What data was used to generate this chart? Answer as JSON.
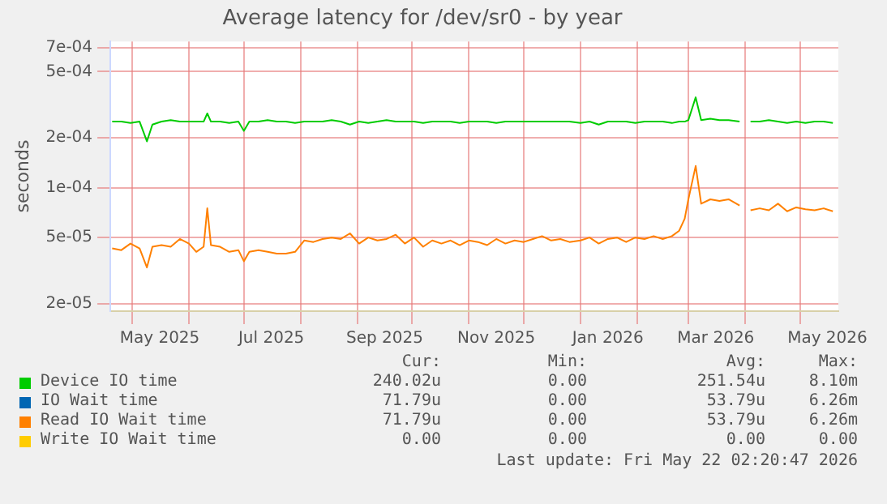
{
  "chart_data": {
    "type": "line",
    "title": "Average latency for /dev/sr0 - by year",
    "ylabel": "seconds",
    "log": "y",
    "grid": true,
    "legend": "bottom",
    "marker": "none",
    "line_style": "solid",
    "xlim": [
      "2025-04-19",
      "2026-05-22"
    ],
    "xticks": [
      {
        "value": "2025-05-01",
        "label": null
      },
      {
        "value": "2025-05-16",
        "label": "May 2025"
      },
      {
        "value": "2025-06-01",
        "label": null
      },
      {
        "value": "2025-07-01",
        "label": null
      },
      {
        "value": "2025-07-16",
        "label": "Jul 2025"
      },
      {
        "value": "2025-08-01",
        "label": null
      },
      {
        "value": "2025-09-01",
        "label": null
      },
      {
        "value": "2025-09-16",
        "label": "Sep 2025"
      },
      {
        "value": "2025-10-01",
        "label": null
      },
      {
        "value": "2025-11-01",
        "label": null
      },
      {
        "value": "2025-11-16",
        "label": "Nov 2025"
      },
      {
        "value": "2025-12-01",
        "label": null
      },
      {
        "value": "2026-01-01",
        "label": null
      },
      {
        "value": "2026-01-16",
        "label": "Jan 2026"
      },
      {
        "value": "2026-02-01",
        "label": null
      },
      {
        "value": "2026-03-01",
        "label": null
      },
      {
        "value": "2026-03-16",
        "label": "Mar 2026"
      },
      {
        "value": "2026-04-01",
        "label": null
      },
      {
        "value": "2026-05-01",
        "label": null
      },
      {
        "value": "2026-05-16",
        "label": "May 2026"
      }
    ],
    "ylim": [
      1.8e-05,
      0.00076
    ],
    "yticks": [
      {
        "value": 2e-05,
        "label": "2e-05"
      },
      {
        "value": 5e-05,
        "label": "5e-05"
      },
      {
        "value": 0.0001,
        "label": "1e-04"
      },
      {
        "value": 0.0002,
        "label": "2e-04"
      },
      {
        "value": 0.0005,
        "label": "5e-04"
      },
      {
        "value": 0.0007,
        "label": "7e-04"
      }
    ],
    "x": [
      "2025-04-20",
      "2025-04-25",
      "2025-04-30",
      "2025-05-05",
      "2025-05-09",
      "2025-05-12",
      "2025-05-17",
      "2025-05-22",
      "2025-05-27",
      "2025-06-01",
      "2025-06-05",
      "2025-06-09",
      "2025-06-11",
      "2025-06-13",
      "2025-06-18",
      "2025-06-23",
      "2025-06-28",
      "2025-07-01",
      "2025-07-04",
      "2025-07-09",
      "2025-07-14",
      "2025-07-19",
      "2025-07-24",
      "2025-07-29",
      "2025-08-03",
      "2025-08-08",
      "2025-08-13",
      "2025-08-18",
      "2025-08-23",
      "2025-08-28",
      "2025-09-02",
      "2025-09-07",
      "2025-09-12",
      "2025-09-17",
      "2025-09-22",
      "2025-09-27",
      "2025-10-02",
      "2025-10-07",
      "2025-10-12",
      "2025-10-17",
      "2025-10-22",
      "2025-10-27",
      "2025-11-01",
      "2025-11-06",
      "2025-11-11",
      "2025-11-16",
      "2025-11-21",
      "2025-11-26",
      "2025-12-01",
      "2025-12-06",
      "2025-12-11",
      "2025-12-16",
      "2025-12-21",
      "2025-12-26",
      "2026-01-01",
      "2026-01-06",
      "2026-01-11",
      "2026-01-16",
      "2026-01-21",
      "2026-01-26",
      "2026-01-31",
      "2026-02-05",
      "2026-02-10",
      "2026-02-15",
      "2026-02-20",
      "2026-02-24",
      "2026-02-27",
      "2026-03-01",
      "2026-03-05",
      "2026-03-08",
      "2026-03-13",
      "2026-03-18",
      "2026-03-23",
      "2026-03-29",
      "2026-04-01",
      "2026-04-04",
      "2026-04-09",
      "2026-04-14",
      "2026-04-19",
      "2026-04-24",
      "2026-04-29",
      "2026-05-04",
      "2026-05-09",
      "2026-05-14",
      "2026-05-19"
    ],
    "series": [
      {
        "name": "Device IO time",
        "color": "#00cc00",
        "values": [
          0.00025,
          0.00025,
          0.000245,
          0.00025,
          0.00019,
          0.00024,
          0.00025,
          0.000255,
          0.00025,
          0.00025,
          0.00025,
          0.00025,
          0.00028,
          0.00025,
          0.00025,
          0.000245,
          0.00025,
          0.00022,
          0.00025,
          0.00025,
          0.000255,
          0.00025,
          0.00025,
          0.000245,
          0.00025,
          0.00025,
          0.00025,
          0.000255,
          0.00025,
          0.00024,
          0.00025,
          0.000245,
          0.00025,
          0.000255,
          0.00025,
          0.00025,
          0.00025,
          0.000245,
          0.00025,
          0.00025,
          0.00025,
          0.000245,
          0.00025,
          0.00025,
          0.00025,
          0.000245,
          0.00025,
          0.00025,
          0.00025,
          0.00025,
          0.00025,
          0.00025,
          0.00025,
          0.00025,
          0.000245,
          0.00025,
          0.00024,
          0.00025,
          0.00025,
          0.00025,
          0.000245,
          0.00025,
          0.00025,
          0.00025,
          0.000245,
          0.00025,
          0.00025,
          0.000255,
          0.00035,
          0.000255,
          0.00026,
          0.000255,
          0.000255,
          0.00025,
          null,
          0.00025,
          0.00025,
          0.000255,
          0.00025,
          0.000245,
          0.00025,
          0.000245,
          0.00025,
          0.00025,
          0.000245
        ]
      },
      {
        "name": "IO Wait time",
        "color": "#0066b3",
        "values": [
          null,
          null,
          null,
          null,
          null,
          null,
          null,
          null,
          null,
          null,
          null,
          null,
          null,
          null,
          null,
          null,
          null,
          null,
          null,
          null,
          null,
          null,
          null,
          null,
          null,
          null,
          null,
          null,
          null,
          null,
          null,
          null,
          null,
          null,
          null,
          null,
          null,
          null,
          null,
          null,
          null,
          null,
          null,
          null,
          null,
          null,
          null,
          null,
          null,
          null,
          null,
          null,
          null,
          null,
          null,
          null,
          null,
          null,
          null,
          null,
          null,
          null,
          null,
          null,
          null,
          null,
          null,
          null,
          null,
          null,
          null,
          null,
          null,
          null,
          null,
          null,
          null,
          null,
          null,
          null,
          null,
          null,
          null,
          null,
          null
        ]
      },
      {
        "name": "Read IO Wait time",
        "color": "#ff8000",
        "values": [
          4.3e-05,
          4.2e-05,
          4.6e-05,
          4.3e-05,
          3.3e-05,
          4.4e-05,
          4.5e-05,
          4.4e-05,
          4.9e-05,
          4.6e-05,
          4.1e-05,
          4.4e-05,
          7.5e-05,
          4.5e-05,
          4.4e-05,
          4.1e-05,
          4.2e-05,
          3.6e-05,
          4.1e-05,
          4.2e-05,
          4.1e-05,
          4e-05,
          4e-05,
          4.1e-05,
          4.8e-05,
          4.7e-05,
          4.9e-05,
          5e-05,
          4.9e-05,
          5.3e-05,
          4.6e-05,
          5e-05,
          4.8e-05,
          4.9e-05,
          5.2e-05,
          4.6e-05,
          5e-05,
          4.4e-05,
          4.8e-05,
          4.6e-05,
          4.8e-05,
          4.5e-05,
          4.8e-05,
          4.7e-05,
          4.5e-05,
          4.9e-05,
          4.6e-05,
          4.8e-05,
          4.7e-05,
          4.9e-05,
          5.1e-05,
          4.8e-05,
          4.9e-05,
          4.7e-05,
          4.8e-05,
          5e-05,
          4.6e-05,
          4.9e-05,
          5e-05,
          4.7e-05,
          5e-05,
          4.9e-05,
          5.1e-05,
          4.9e-05,
          5.1e-05,
          5.5e-05,
          6.5e-05,
          8.5e-05,
          0.000135,
          8e-05,
          8.5e-05,
          8.3e-05,
          8.5e-05,
          7.8e-05,
          null,
          7.3e-05,
          7.5e-05,
          7.3e-05,
          8e-05,
          7.2e-05,
          7.6e-05,
          7.4e-05,
          7.3e-05,
          7.5e-05,
          7.2e-05
        ]
      },
      {
        "name": "Write IO Wait time",
        "color": "#ffcc00",
        "values": [
          null,
          null,
          null,
          null,
          null,
          null,
          null,
          null,
          null,
          null,
          null,
          null,
          null,
          null,
          null,
          null,
          null,
          null,
          null,
          null,
          null,
          null,
          null,
          null,
          null,
          null,
          null,
          null,
          null,
          null,
          null,
          null,
          null,
          null,
          null,
          null,
          null,
          null,
          null,
          null,
          null,
          null,
          null,
          null,
          null,
          null,
          null,
          null,
          null,
          null,
          null,
          null,
          null,
          null,
          null,
          null,
          null,
          null,
          null,
          null,
          null,
          null,
          null,
          null,
          null,
          null,
          null,
          null,
          null,
          null,
          null,
          null,
          null,
          null,
          null,
          null,
          null,
          null,
          null,
          null,
          null,
          null,
          null,
          null,
          null
        ]
      }
    ],
    "annotations": [
      "Cur:",
      "Min:",
      "Avg:",
      "Max:",
      "240.02u",
      "0.00",
      "251.54u",
      "8.10m",
      "71.79u",
      "0.00",
      "53.79u",
      "6.26m",
      "71.79u",
      "0.00",
      "53.79u",
      "6.26m",
      "0.00",
      "0.00",
      "0.00",
      "0.00",
      "Last update: Fri May 22 02:20:47 2026"
    ]
  }
}
